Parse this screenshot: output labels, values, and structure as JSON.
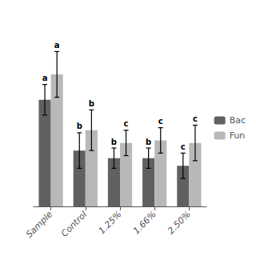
{
  "chart_data": {
    "type": "bar",
    "categories": [
      "Sample",
      "Control",
      "1.25%",
      "1.66%",
      "2.50%"
    ],
    "series": [
      {
        "name": "Bac",
        "color": "#606060",
        "values": [
          0.72,
          0.52,
          0.49,
          0.49,
          0.46
        ],
        "errors": [
          0.06,
          0.07,
          0.04,
          0.04,
          0.05
        ],
        "labels": [
          "a",
          "b",
          "b",
          "b",
          "c"
        ]
      },
      {
        "name": "Fun",
        "color": "#b8b8b8",
        "values": [
          0.82,
          0.6,
          0.55,
          0.56,
          0.55
        ],
        "errors": [
          0.09,
          0.08,
          0.05,
          0.05,
          0.07
        ],
        "labels": [
          "a",
          "b",
          "c",
          "c",
          "c"
        ]
      }
    ],
    "ylim": [
      0.3,
      1.05
    ],
    "grid": false,
    "legend": "right",
    "tick_labels": "x"
  }
}
